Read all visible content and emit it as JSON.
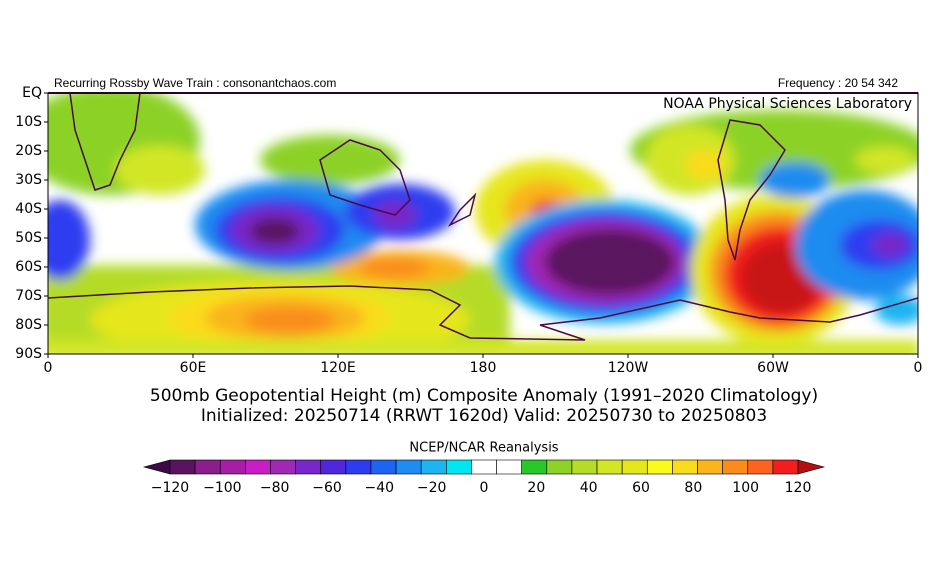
{
  "header": {
    "left": "Recurring Rossby Wave Train : consonantchaos.com",
    "right": "Frequency : 20 54 342"
  },
  "map": {
    "credit": "NOAA Physical Sciences Laboratory",
    "lat_labels": [
      "EQ",
      "10S",
      "20S",
      "30S",
      "40S",
      "50S",
      "60S",
      "70S",
      "80S",
      "90S"
    ],
    "lon_labels": [
      "0",
      "60E",
      "120E",
      "180",
      "120W",
      "60W",
      "0"
    ]
  },
  "title": {
    "line1": "500mb Geopotential Height (m) Composite Anomaly (1991–2020 Climatology)",
    "line2": "Initialized: 20250714 (RRWT 1620d) Valid: 20250730 to 20250803"
  },
  "colorbar": {
    "label": "NCEP/NCAR Reanalysis",
    "ticks": [
      "−120",
      "−100",
      "−80",
      "−60",
      "−40",
      "−20",
      "0",
      "20",
      "40",
      "60",
      "80",
      "100",
      "120"
    ],
    "low_color": "#3c0a46",
    "high_color": "#b41010",
    "colors": [
      "#5a145f",
      "#8c1e8c",
      "#a51ea5",
      "#c81ec8",
      "#a028b4",
      "#7828c8",
      "#5028dc",
      "#2d3cf0",
      "#1e64f0",
      "#1e8cf0",
      "#1eb4f0",
      "#00e6f0",
      "#ffffff",
      "#ffffff",
      "#28c828",
      "#8cd228",
      "#b4dc28",
      "#d2e628",
      "#e6e61e",
      "#fafa1e",
      "#fadc1e",
      "#fab41e",
      "#fa8c1e",
      "#fa641e",
      "#f01e1e"
    ]
  }
}
